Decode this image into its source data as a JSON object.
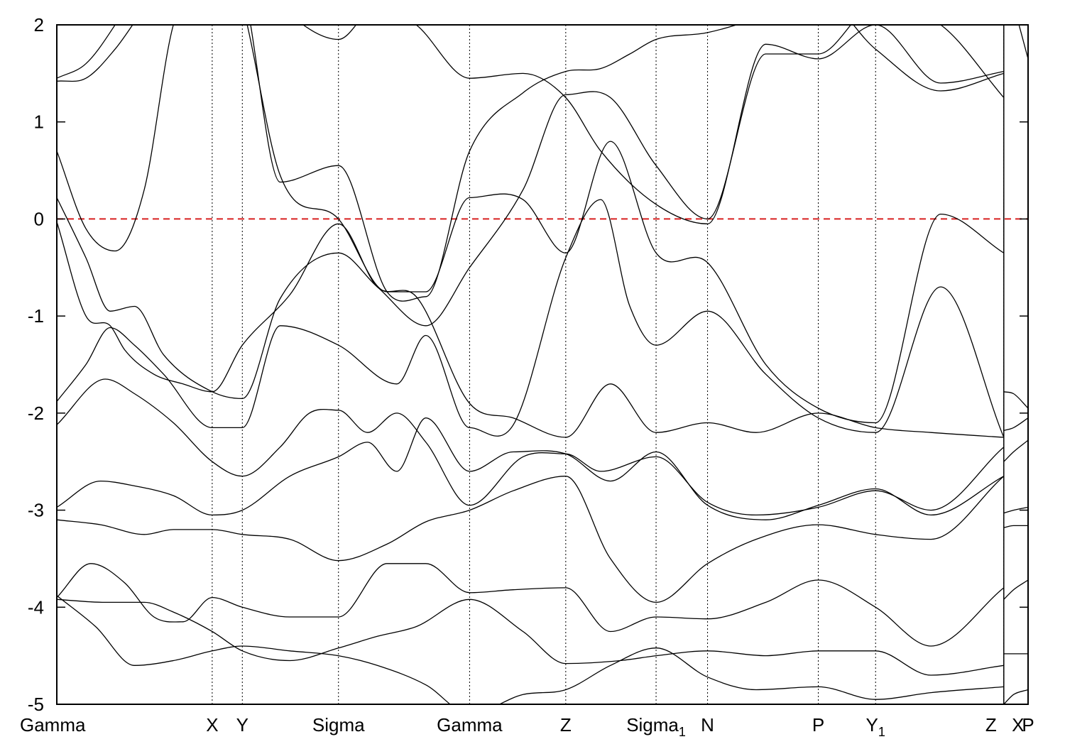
{
  "chart_data": {
    "type": "line",
    "title": "",
    "xlabel": "",
    "ylabel": "",
    "ylim": [
      -5,
      2
    ],
    "yticks": [
      2,
      1,
      0,
      -1,
      -2,
      -3,
      -4,
      -5
    ],
    "ytick_labels": [
      "2",
      "1",
      "0",
      "-1",
      "-2",
      "-3",
      "-4",
      "-5"
    ],
    "xlim": [
      0,
      10
    ],
    "kpoints": [
      {
        "x": 0.0,
        "label": "Gamma"
      },
      {
        "x": 1.6,
        "label": "X"
      },
      {
        "x": 1.91,
        "label": "Y"
      },
      {
        "x": 2.9,
        "label": "Sigma"
      },
      {
        "x": 4.25,
        "label": "Gamma"
      },
      {
        "x": 5.24,
        "label": "Z"
      },
      {
        "x": 6.17,
        "label": "Sigma",
        "sub": "1"
      },
      {
        "x": 6.7,
        "label": "N"
      },
      {
        "x": 7.84,
        "label": "P"
      },
      {
        "x": 8.43,
        "label": "Y",
        "sub": "1"
      },
      {
        "x": 9.75,
        "label": "Z"
      },
      {
        "x": 9.75,
        "label": "X"
      },
      {
        "x": 10.0,
        "label": "P"
      }
    ],
    "fermi_level": 0,
    "fermi_color": "#d82020",
    "line_color": "#000000",
    "grid": "vertical dotted at k-points",
    "series": [
      {
        "x": [
          0,
          0.3,
          0.55,
          0.7,
          1.0,
          1.3,
          1.6,
          1.91,
          2.4,
          2.9,
          3.3,
          3.7,
          4.25,
          4.7,
          5.24,
          5.7,
          6.17,
          6.7,
          7.2,
          7.84,
          8.43,
          9.0,
          9.75
        ],
        "values": [
          -0.03,
          -1.0,
          -1.1,
          -1.35,
          -1.6,
          -1.7,
          -1.78,
          -1.3,
          -0.78,
          -0.05,
          -0.7,
          -0.8,
          -1.9,
          -2.05,
          -2.25,
          -1.7,
          -2.2,
          -2.1,
          -2.2,
          -2.0,
          -2.15,
          -2.2,
          -2.25
        ]
      },
      {
        "x": [
          0,
          0.3,
          0.55,
          0.8,
          1.1,
          1.6,
          1.91,
          2.3,
          2.9,
          3.5,
          3.8,
          4.25,
          4.7,
          5.24,
          5.6,
          5.9,
          6.17,
          6.7,
          7.3,
          7.84,
          8.43,
          9.1,
          9.75
        ],
        "values": [
          -1.88,
          -1.5,
          -1.12,
          -1.3,
          -1.6,
          -2.15,
          -2.15,
          -1.1,
          -1.3,
          -1.7,
          -1.2,
          -2.15,
          -2.12,
          -0.4,
          0.2,
          -0.9,
          -1.3,
          -0.95,
          -1.6,
          -2.05,
          -2.2,
          -0.7,
          -2.25
        ]
      },
      {
        "x": [
          0,
          0.5,
          0.8,
          1.2,
          1.6,
          1.91,
          2.3,
          2.6,
          2.9,
          3.2,
          3.5,
          3.8,
          4.25,
          4.8,
          5.24,
          5.6,
          6.17,
          6.7,
          7.2,
          7.84,
          8.43,
          9.0,
          9.75
        ],
        "values": [
          -2.12,
          -1.65,
          -1.8,
          -2.1,
          -2.5,
          -2.65,
          -2.35,
          -2.0,
          -1.97,
          -2.2,
          -2.0,
          -2.3,
          -2.95,
          -2.45,
          -2.42,
          -2.6,
          -2.45,
          -2.92,
          -3.05,
          -2.97,
          -2.8,
          -3.0,
          -2.35
        ]
      },
      {
        "x": [
          0,
          0.45,
          0.8,
          1.2,
          1.6,
          1.91,
          2.4,
          2.9,
          3.2,
          3.5,
          3.8,
          4.25,
          4.7,
          5.24,
          5.7,
          6.17,
          6.7,
          7.3,
          7.84,
          8.43,
          9.0,
          9.75
        ],
        "values": [
          -2.97,
          -2.7,
          -2.75,
          -2.85,
          -3.05,
          -3.0,
          -2.65,
          -2.45,
          -2.3,
          -2.6,
          -2.05,
          -2.6,
          -2.4,
          -2.42,
          -2.7,
          -2.4,
          -2.95,
          -3.1,
          -2.95,
          -2.78,
          -3.05,
          -2.65
        ]
      },
      {
        "x": [
          0,
          0.45,
          0.9,
          1.2,
          1.6,
          1.91,
          2.4,
          2.9,
          3.4,
          3.8,
          4.25,
          4.7,
          5.24,
          5.7,
          6.17,
          6.7,
          7.2,
          7.84,
          8.43,
          9.0,
          9.75
        ],
        "values": [
          -3.1,
          -3.15,
          -3.25,
          -3.2,
          -3.2,
          -3.25,
          -3.3,
          -3.52,
          -3.35,
          -3.12,
          -3.0,
          -2.8,
          -2.65,
          -3.5,
          -3.95,
          -3.55,
          -3.3,
          -3.15,
          -3.25,
          -3.3,
          -2.65
        ]
      },
      {
        "x": [
          0,
          0.35,
          0.7,
          1.0,
          1.3,
          1.6,
          1.91,
          2.4,
          2.9,
          3.4,
          3.8,
          4.25,
          4.7,
          5.24,
          5.7,
          6.17,
          6.7,
          7.3,
          7.84,
          8.43,
          9.0,
          9.75
        ],
        "values": [
          -3.9,
          -3.55,
          -3.75,
          -4.1,
          -4.15,
          -3.9,
          -4.0,
          -4.1,
          -4.1,
          -3.55,
          -3.55,
          -3.85,
          -3.82,
          -3.8,
          -4.25,
          -4.1,
          -4.12,
          -3.95,
          -3.72,
          -4.0,
          -4.4,
          -3.8
        ]
      },
      {
        "x": [
          0,
          0.5,
          0.9,
          1.2,
          1.6,
          1.91,
          2.4,
          2.9,
          3.3,
          3.7,
          4.25,
          4.8,
          5.24,
          5.8,
          6.17,
          6.7,
          7.3,
          7.84,
          8.43,
          9.0,
          9.75
        ],
        "values": [
          -3.92,
          -3.95,
          -3.95,
          -4.05,
          -4.25,
          -4.45,
          -4.55,
          -4.42,
          -4.3,
          -4.2,
          -3.92,
          -4.25,
          -4.58,
          -4.55,
          -4.5,
          -4.45,
          -4.5,
          -4.45,
          -4.45,
          -4.7,
          -4.6
        ]
      },
      {
        "x": [
          0,
          0.4,
          0.8,
          1.2,
          1.6,
          1.91,
          2.4,
          2.9,
          3.3,
          3.8,
          4.25,
          4.8,
          5.24,
          5.7,
          6.17,
          6.7,
          7.2,
          7.84,
          8.43,
          9.0,
          9.75
        ],
        "values": [
          -3.88,
          -4.2,
          -4.6,
          -4.55,
          -4.45,
          -4.4,
          -4.45,
          -4.5,
          -4.6,
          -4.8,
          -5.1,
          -4.9,
          -4.85,
          -4.6,
          -4.42,
          -4.72,
          -4.85,
          -4.82,
          -4.95,
          -4.88,
          -4.82
        ]
      },
      {
        "x": [
          0,
          0.3,
          0.55,
          0.8,
          1.1,
          1.6,
          1.91,
          2.3,
          2.9,
          3.3,
          3.8,
          4.25,
          4.8,
          5.24,
          5.7,
          6.17,
          6.7,
          7.3,
          7.84,
          8.43,
          9.1,
          9.75
        ],
        "values": [
          0.22,
          -0.4,
          -0.95,
          -0.9,
          -1.4,
          -1.78,
          -1.85,
          -0.82,
          -0.35,
          -0.7,
          -1.1,
          -0.5,
          0.3,
          1.28,
          1.25,
          0.55,
          0.0,
          1.7,
          1.7,
          2.2,
          2.0,
          1.25
        ]
      },
      {
        "x": [
          0,
          0.3,
          0.6,
          0.9,
          1.2,
          1.6,
          1.91,
          2.3,
          2.9,
          3.4,
          3.8,
          4.25,
          4.8,
          5.24,
          5.6,
          5.9,
          6.17,
          6.7,
          7.3,
          7.84,
          8.43,
          9.1,
          9.75
        ],
        "values": [
          0.7,
          -0.1,
          -0.33,
          0.3,
          2.0,
          2.6,
          2.4,
          0.38,
          0.55,
          -0.75,
          -0.8,
          0.7,
          1.3,
          1.52,
          1.55,
          1.7,
          1.85,
          1.92,
          2.1,
          2.3,
          1.75,
          1.32,
          1.5
        ]
      },
      {
        "x": [
          0,
          0.3,
          0.6,
          0.95,
          1.6,
          1.91,
          2.3,
          2.9,
          3.4,
          3.8,
          4.25,
          4.8,
          5.24,
          5.7,
          6.17,
          6.7,
          7.3,
          7.84,
          8.43,
          9.1,
          9.75
        ],
        "values": [
          1.45,
          1.6,
          2.0,
          2.6,
          3.0,
          2.2,
          0.45,
          0.0,
          -0.75,
          -0.75,
          0.22,
          0.2,
          -0.35,
          0.8,
          -0.35,
          -0.45,
          -1.5,
          -1.95,
          -2.1,
          0.05,
          -0.35
        ]
      },
      {
        "x": [
          0,
          0.3,
          0.6,
          1.0,
          1.6,
          1.91,
          2.4,
          2.9,
          3.3,
          3.7,
          4.25,
          4.8,
          5.24,
          5.6,
          6.17,
          6.7,
          7.3,
          7.84,
          8.43,
          9.1,
          9.75
        ],
        "values": [
          1.42,
          1.45,
          1.75,
          2.3,
          2.8,
          2.6,
          2.1,
          1.85,
          2.2,
          2.0,
          1.45,
          1.5,
          1.25,
          0.7,
          0.15,
          -0.05,
          1.8,
          1.65,
          2.0,
          1.4,
          1.52
        ]
      },
      {
        "x": [
          9.75,
          9.85,
          10.0
        ],
        "values": [
          -1.78,
          -1.8,
          -1.95
        ]
      },
      {
        "x": [
          9.75,
          9.85,
          10.0
        ],
        "values": [
          -2.18,
          -2.15,
          -2.05
        ]
      },
      {
        "x": [
          9.75,
          9.85,
          10.0
        ],
        "values": [
          -2.5,
          -2.4,
          -2.28
        ]
      },
      {
        "x": [
          9.75,
          9.85,
          10.0
        ],
        "values": [
          -3.03,
          -3.0,
          -2.97
        ]
      },
      {
        "x": [
          9.75,
          9.85,
          10.0
        ],
        "values": [
          -3.18,
          -3.16,
          -3.16
        ]
      },
      {
        "x": [
          9.75,
          9.85,
          10.0
        ],
        "values": [
          -3.92,
          -3.82,
          -3.72
        ]
      },
      {
        "x": [
          9.75,
          9.85,
          10.0
        ],
        "values": [
          -4.48,
          -4.48,
          -4.48
        ]
      },
      {
        "x": [
          9.75,
          9.85,
          10.0
        ],
        "values": [
          -5.0,
          -4.9,
          -4.85
        ]
      },
      {
        "x": [
          9.75,
          9.85,
          10.0
        ],
        "values": [
          2.5,
          2.2,
          1.65
        ]
      }
    ]
  }
}
